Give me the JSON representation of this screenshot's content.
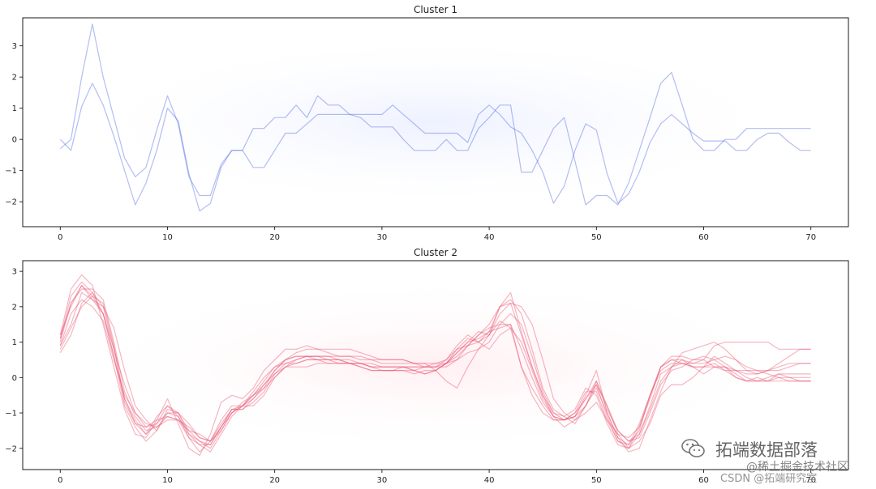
{
  "chart_data": [
    {
      "type": "line",
      "title": "Cluster 1",
      "color": "#4a64e0",
      "xlim": [
        -3.5,
        73.5
      ],
      "ylim": [
        -2.8,
        3.9
      ],
      "xticks": [
        0,
        10,
        20,
        30,
        40,
        50,
        60,
        70
      ],
      "yticks": [
        -2,
        -1,
        0,
        1,
        2,
        3
      ],
      "grid": false,
      "x": [
        0,
        1,
        2,
        3,
        4,
        5,
        6,
        7,
        8,
        9,
        10,
        11,
        12,
        13,
        14,
        15,
        16,
        17,
        18,
        19,
        20,
        21,
        22,
        23,
        24,
        25,
        26,
        27,
        28,
        29,
        30,
        31,
        32,
        33,
        34,
        35,
        36,
        37,
        38,
        39,
        40,
        41,
        42,
        43,
        44,
        45,
        46,
        47,
        48,
        49,
        50,
        51,
        52,
        53,
        54,
        55,
        56,
        57,
        58,
        59,
        60,
        61,
        62,
        63,
        64,
        65,
        66,
        67,
        68,
        69,
        70
      ],
      "series": [
        {
          "values": [
            -0.3,
            0.0,
            2.0,
            3.7,
            2.0,
            0.7,
            -0.6,
            -1.2,
            -0.9,
            0.3,
            1.4,
            0.5,
            -1.2,
            -1.8,
            -1.8,
            -0.8,
            -0.35,
            -0.35,
            0.35,
            0.35,
            0.7,
            0.7,
            1.1,
            0.7,
            1.4,
            1.1,
            1.1,
            0.8,
            0.7,
            0.4,
            0.4,
            0.4,
            0.0,
            -0.35,
            -0.35,
            -0.35,
            0.0,
            -0.35,
            -0.35,
            0.35,
            0.7,
            1.1,
            1.1,
            -1.05,
            -1.05,
            -0.35,
            0.35,
            0.7,
            -0.7,
            -2.1,
            -1.8,
            -1.8,
            -2.1,
            -1.4,
            -0.35,
            0.7,
            1.8,
            2.15,
            1.1,
            0.0,
            -0.35,
            -0.35,
            0.0,
            0.0,
            0.35,
            0.35,
            0.35,
            0.35,
            0.35,
            0.35,
            0.35
          ]
        },
        {
          "values": [
            0.0,
            -0.35,
            1.05,
            1.8,
            1.1,
            0.1,
            -1.0,
            -2.1,
            -1.4,
            -0.35,
            1.0,
            0.6,
            -1.1,
            -2.3,
            -2.05,
            -0.9,
            -0.35,
            -0.35,
            -0.9,
            -0.9,
            -0.35,
            0.2,
            0.2,
            0.5,
            0.8,
            0.8,
            0.8,
            0.8,
            0.8,
            0.8,
            0.8,
            1.1,
            0.8,
            0.5,
            0.2,
            0.2,
            0.2,
            0.2,
            -0.1,
            0.8,
            1.1,
            0.8,
            0.4,
            0.2,
            -0.35,
            -1.05,
            -2.05,
            -1.5,
            -0.35,
            0.5,
            0.3,
            -1.1,
            -2.05,
            -1.75,
            -1.05,
            -0.1,
            0.5,
            0.8,
            0.5,
            0.2,
            -0.05,
            -0.05,
            -0.05,
            -0.35,
            -0.35,
            0.0,
            0.2,
            0.2,
            -0.1,
            -0.35,
            -0.35
          ]
        }
      ]
    },
    {
      "type": "line",
      "title": "Cluster 2",
      "color": "#e8526e",
      "xlim": [
        -3.5,
        73.5
      ],
      "ylim": [
        -2.6,
        3.3
      ],
      "xticks": [
        0,
        10,
        20,
        30,
        40,
        50,
        60,
        70
      ],
      "yticks": [
        -2,
        -1,
        0,
        1,
        2,
        3
      ],
      "grid": false,
      "x": [
        0,
        1,
        2,
        3,
        4,
        5,
        6,
        7,
        8,
        9,
        10,
        11,
        12,
        13,
        14,
        15,
        16,
        17,
        18,
        19,
        20,
        21,
        22,
        23,
        24,
        25,
        26,
        27,
        28,
        29,
        30,
        31,
        32,
        33,
        34,
        35,
        36,
        37,
        38,
        39,
        40,
        41,
        42,
        43,
        44,
        45,
        46,
        47,
        48,
        49,
        50,
        51,
        52,
        53,
        54,
        55,
        56,
        57,
        58,
        59,
        60,
        61,
        62,
        63,
        64,
        65,
        66,
        67,
        68,
        69,
        70
      ],
      "series": [
        {
          "values": [
            1.2,
            2.0,
            2.6,
            2.3,
            1.8,
            0.6,
            -0.6,
            -1.3,
            -1.6,
            -1.1,
            -0.8,
            -1.1,
            -1.7,
            -1.9,
            -1.9,
            -1.4,
            -0.9,
            -0.9,
            -0.6,
            -0.2,
            0.1,
            0.4,
            0.5,
            0.6,
            0.6,
            0.5,
            0.5,
            0.5,
            0.4,
            0.3,
            0.3,
            0.3,
            0.3,
            0.3,
            0.3,
            0.3,
            0.3,
            0.5,
            0.9,
            1.2,
            1.4,
            1.5,
            1.5,
            0.8,
            0.0,
            -0.7,
            -1.1,
            -1.2,
            -1.0,
            -0.4,
            -0.4,
            -1.2,
            -1.8,
            -1.9,
            -1.5,
            -0.5,
            0.2,
            0.4,
            0.4,
            0.3,
            0.3,
            0.3,
            0.3,
            0.0,
            -0.1,
            -0.1,
            -0.1,
            0.0,
            -0.1,
            -0.1,
            -0.1
          ]
        },
        {
          "values": [
            0.7,
            1.2,
            2.1,
            2.4,
            2.0,
            0.8,
            -0.6,
            -1.2,
            -1.6,
            -1.3,
            -1.0,
            -1.0,
            -1.6,
            -1.8,
            -2.0,
            -1.5,
            -1.0,
            -0.8,
            -0.8,
            -0.5,
            0.0,
            0.3,
            0.4,
            0.5,
            0.5,
            0.5,
            0.4,
            0.4,
            0.3,
            0.2,
            0.2,
            0.2,
            0.3,
            0.2,
            0.1,
            0.2,
            0.4,
            0.7,
            1.0,
            1.3,
            1.2,
            1.6,
            1.4,
            0.3,
            -0.3,
            -0.8,
            -1.2,
            -1.2,
            -1.1,
            -0.5,
            0.2,
            -1.0,
            -1.7,
            -1.9,
            -1.3,
            -0.5,
            0.3,
            0.5,
            0.5,
            0.3,
            0.1,
            0.3,
            0.2,
            0.2,
            0.0,
            -0.1,
            0.0,
            0.1,
            0.0,
            -0.1,
            -0.1
          ]
        },
        {
          "values": [
            1.1,
            2.1,
            2.5,
            2.5,
            2.2,
            1.0,
            -0.4,
            -1.1,
            -1.5,
            -1.4,
            -1.1,
            -1.2,
            -1.7,
            -2.1,
            -1.8,
            -1.3,
            -0.9,
            -0.8,
            -0.6,
            -0.3,
            0.2,
            0.5,
            0.6,
            0.6,
            0.5,
            0.4,
            0.4,
            0.4,
            0.3,
            0.2,
            0.2,
            0.2,
            0.2,
            0.1,
            0.2,
            0.2,
            0.4,
            0.8,
            1.1,
            1.0,
            1.3,
            1.4,
            1.5,
            0.3,
            -0.5,
            -1.0,
            -1.2,
            -1.2,
            -1.0,
            -0.6,
            -0.1,
            -0.8,
            -1.6,
            -2.0,
            -1.6,
            -0.8,
            0.1,
            0.3,
            0.4,
            0.3,
            0.3,
            0.4,
            0.2,
            0.0,
            -0.1,
            0.0,
            -0.1,
            -0.1,
            -0.1,
            -0.1,
            -0.1
          ]
        },
        {
          "values": [
            0.9,
            1.5,
            2.4,
            2.2,
            2.0,
            1.4,
            0.2,
            -0.8,
            -1.2,
            -1.5,
            -0.9,
            -1.0,
            -1.3,
            -1.7,
            -1.8,
            -1.2,
            -0.8,
            -0.8,
            -0.4,
            0.0,
            0.3,
            0.4,
            0.4,
            0.5,
            0.5,
            0.5,
            0.5,
            0.4,
            0.4,
            0.3,
            0.3,
            0.3,
            0.3,
            0.2,
            0.1,
            0.2,
            0.4,
            0.7,
            1.0,
            1.1,
            1.3,
            2.0,
            2.2,
            1.8,
            0.8,
            -0.3,
            -0.9,
            -1.1,
            -1.3,
            -0.8,
            -0.1,
            -0.9,
            -1.5,
            -1.8,
            -1.7,
            -1.0,
            -0.2,
            0.2,
            0.3,
            0.5,
            0.5,
            0.3,
            0.3,
            0.1,
            -0.1,
            -0.1,
            -0.1,
            0.1,
            0.1,
            0.1,
            0.1
          ]
        },
        {
          "values": [
            1.0,
            2.1,
            2.6,
            2.2,
            1.8,
            0.8,
            -0.2,
            -1.0,
            -1.4,
            -1.3,
            -0.8,
            -1.0,
            -1.5,
            -1.8,
            -1.9,
            -1.4,
            -1.0,
            -0.8,
            -0.5,
            -0.1,
            0.3,
            0.5,
            0.6,
            0.6,
            0.6,
            0.6,
            0.5,
            0.4,
            0.4,
            0.4,
            0.3,
            0.3,
            0.3,
            0.3,
            0.3,
            0.4,
            0.5,
            0.8,
            0.9,
            1.0,
            1.2,
            1.8,
            2.1,
            1.2,
            0.3,
            -0.5,
            -1.0,
            -1.1,
            -0.9,
            -0.3,
            -0.5,
            -1.3,
            -1.9,
            -2.0,
            -1.4,
            -0.5,
            0.3,
            0.6,
            0.6,
            0.5,
            0.6,
            0.5,
            0.3,
            0.2,
            0.1,
            0.1,
            0.2,
            0.3,
            0.4,
            0.4,
            0.4
          ]
        },
        {
          "values": [
            0.8,
            1.4,
            2.0,
            2.3,
            2.1,
            0.9,
            -0.7,
            -1.3,
            -1.4,
            -1.2,
            -1.1,
            -1.2,
            -1.5,
            -1.6,
            -1.8,
            -1.4,
            -0.9,
            -0.9,
            -0.7,
            -0.4,
            0.1,
            0.3,
            0.3,
            0.3,
            0.4,
            0.4,
            0.4,
            0.4,
            0.4,
            0.3,
            0.2,
            0.2,
            0.2,
            0.2,
            0.3,
            0.3,
            0.5,
            0.9,
            1.2,
            1.0,
            0.8,
            1.2,
            1.4,
            1.0,
            0.2,
            -0.6,
            -1.1,
            -1.2,
            -1.1,
            -0.6,
            -0.2,
            -1.1,
            -1.8,
            -2.0,
            -1.8,
            -1.3,
            -0.5,
            -0.2,
            -0.2,
            0.0,
            0.3,
            0.6,
            0.4,
            0.2,
            0.2,
            0.2,
            0.1,
            0.0,
            0.0,
            0.0,
            0.0
          ]
        },
        {
          "values": [
            1.2,
            2.5,
            2.9,
            2.6,
            1.5,
            0.3,
            -0.9,
            -1.6,
            -1.7,
            -1.2,
            -0.6,
            -1.3,
            -2.0,
            -2.2,
            -1.6,
            -0.7,
            -0.5,
            -0.6,
            -0.3,
            0.2,
            0.5,
            0.8,
            0.8,
            0.9,
            0.8,
            0.7,
            0.6,
            0.6,
            0.6,
            0.5,
            0.4,
            0.4,
            0.4,
            0.4,
            0.4,
            0.2,
            -0.1,
            -0.3,
            0.3,
            0.8,
            1.2,
            2.0,
            2.4,
            1.3,
            0.3,
            -0.5,
            -1.1,
            -1.4,
            -1.2,
            -0.8,
            -0.3,
            -1.0,
            -1.7,
            -2.1,
            -2.0,
            -1.2,
            -0.4,
            0.3,
            0.7,
            0.8,
            0.9,
            1.0,
            0.8,
            0.5,
            0.2,
            0.1,
            0.2,
            0.4,
            0.6,
            0.8,
            0.8
          ]
        },
        {
          "values": [
            1.1,
            2.3,
            2.7,
            2.4,
            1.8,
            0.6,
            -0.8,
            -1.4,
            -1.8,
            -1.5,
            -1.0,
            -1.1,
            -1.6,
            -1.9,
            -2.1,
            -1.6,
            -1.1,
            -0.8,
            -0.5,
            -0.2,
            0.2,
            0.5,
            0.7,
            0.8,
            0.8,
            0.8,
            0.8,
            0.8,
            0.7,
            0.6,
            0.5,
            0.5,
            0.5,
            0.4,
            0.3,
            0.3,
            0.4,
            0.6,
            0.9,
            1.2,
            1.5,
            2.0,
            2.1,
            2.0,
            1.5,
            0.5,
            -0.6,
            -1.0,
            -1.2,
            -1.0,
            -0.7,
            -1.2,
            -1.6,
            -1.7,
            -1.4,
            -0.6,
            0.3,
            0.5,
            0.4,
            0.4,
            0.5,
            0.9,
            1.0,
            1.0,
            1.0,
            1.0,
            1.0,
            0.8,
            0.8,
            0.8,
            0.8
          ]
        },
        {
          "values": [
            0.9,
            1.8,
            2.2,
            2.0,
            1.6,
            0.5,
            -0.5,
            -1.0,
            -1.3,
            -1.4,
            -1.2,
            -1.2,
            -1.4,
            -1.7,
            -1.8,
            -1.5,
            -1.0,
            -0.7,
            -0.5,
            -0.3,
            0.0,
            0.3,
            0.5,
            0.6,
            0.6,
            0.6,
            0.6,
            0.6,
            0.5,
            0.5,
            0.5,
            0.5,
            0.5,
            0.4,
            0.4,
            0.4,
            0.4,
            0.5,
            0.7,
            0.8,
            1.0,
            1.5,
            1.8,
            1.5,
            0.6,
            -0.4,
            -1.0,
            -1.2,
            -1.1,
            -0.8,
            -0.2,
            -0.8,
            -1.5,
            -1.8,
            -1.6,
            -0.9,
            -0.1,
            0.3,
            0.5,
            0.4,
            0.4,
            0.5,
            0.6,
            0.5,
            0.3,
            0.2,
            0.2,
            0.2,
            0.3,
            0.4,
            0.4
          ]
        }
      ]
    }
  ],
  "watermark": {
    "icon": "wechat-icon",
    "main": "拓端数据部落",
    "sub": "@稀土掘金技术社区",
    "csdn": "CSDN @拓端研究室"
  }
}
